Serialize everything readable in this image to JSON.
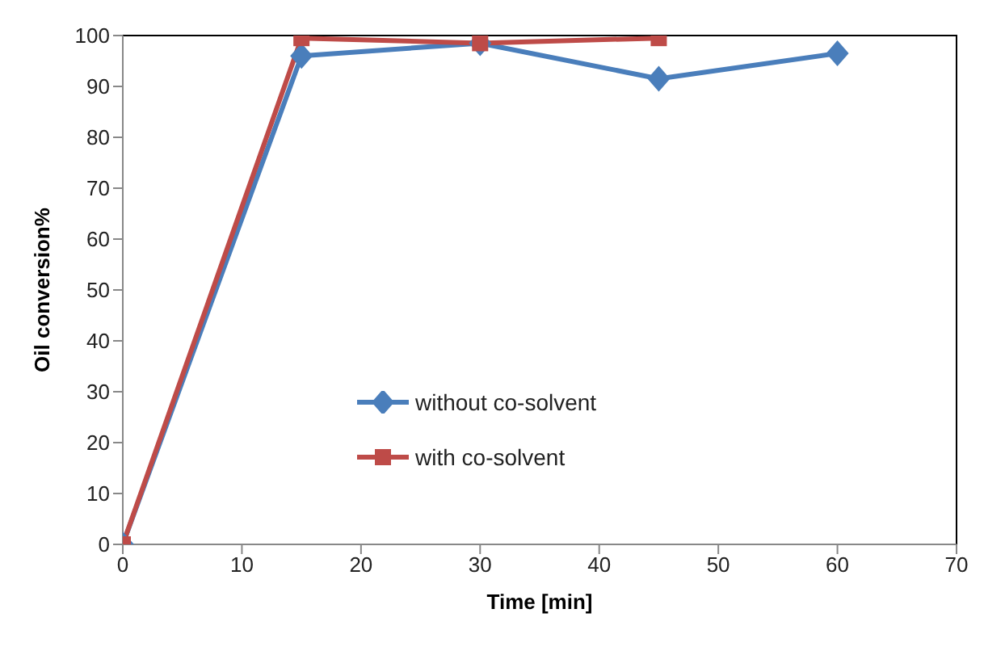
{
  "chart_data": {
    "type": "line",
    "xlabel": "Time [min]",
    "ylabel": "Oil conversion%",
    "x": [
      0,
      15,
      30,
      45,
      60
    ],
    "series": [
      {
        "name": "without co-solvent",
        "color": "#4a7ebb",
        "values": [
          0,
          96,
          98.5,
          91.5,
          96.5
        ],
        "marker": "diamond"
      },
      {
        "name": "with co-solvent",
        "color": "#be4b48",
        "values": [
          0,
          99.5,
          98.5,
          99.5,
          null
        ],
        "marker": "square"
      }
    ],
    "xlim": [
      0,
      70
    ],
    "xticks": [
      0,
      10,
      20,
      30,
      40,
      50,
      60,
      70
    ],
    "ylim": [
      0,
      100
    ],
    "yticks": [
      0,
      10,
      20,
      30,
      40,
      50,
      60,
      70,
      80,
      90,
      100
    ],
    "grid": false,
    "legend": "left",
    "line_style": "solid"
  }
}
